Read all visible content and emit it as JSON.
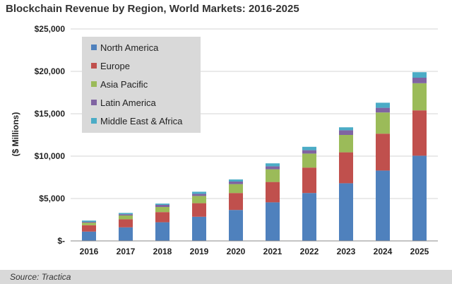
{
  "chart_data": {
    "type": "bar",
    "stacked": true,
    "title": "Blockchain Revenue by Region, World Markets: 2016-2025",
    "xlabel": "",
    "ylabel": "($ Millions)",
    "ylim": [
      0,
      25000
    ],
    "y_ticks": [
      0,
      5000,
      10000,
      15000,
      20000,
      25000
    ],
    "y_tick_labels": [
      "$-",
      "$5,000",
      "$10,000",
      "$15,000",
      "$20,000",
      "$25,000"
    ],
    "categories": [
      "2016",
      "2017",
      "2018",
      "2019",
      "2020",
      "2021",
      "2022",
      "2023",
      "2024",
      "2025"
    ],
    "grid": true,
    "legend_position": "top-left",
    "series": [
      {
        "name": "North America",
        "color": "#4f81bd",
        "values": [
          1100,
          1600,
          2200,
          2850,
          3650,
          4550,
          5650,
          6800,
          8300,
          10050
        ]
      },
      {
        "name": "Europe",
        "color": "#c0504d",
        "values": [
          750,
          950,
          1200,
          1600,
          2000,
          2400,
          3000,
          3650,
          4350,
          5350
        ]
      },
      {
        "name": "Asia Pacific",
        "color": "#9bbb59",
        "values": [
          300,
          450,
          600,
          850,
          1050,
          1500,
          1650,
          2050,
          2500,
          3200
        ]
      },
      {
        "name": "Latin America",
        "color": "#8064a2",
        "values": [
          100,
          150,
          250,
          250,
          300,
          350,
          400,
          550,
          550,
          650
        ]
      },
      {
        "name": "Middle East & Africa",
        "color": "#4bacc6",
        "values": [
          150,
          150,
          150,
          250,
          250,
          350,
          400,
          350,
          600,
          650
        ]
      }
    ]
  },
  "source": "Source: Tractica"
}
